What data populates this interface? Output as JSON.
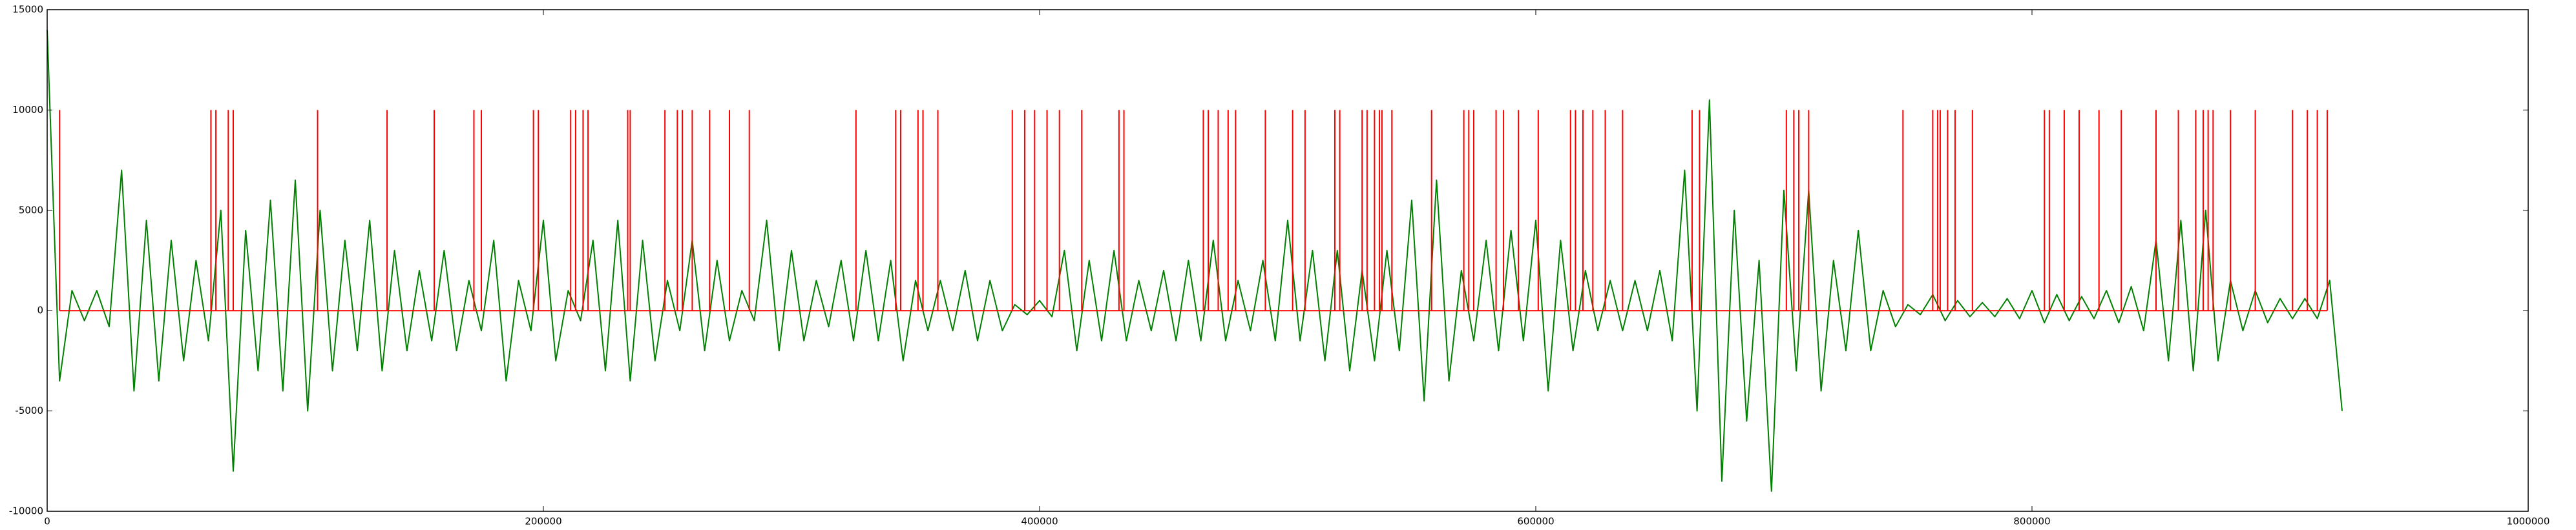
{
  "chart_data": {
    "type": "line",
    "xlim": [
      0,
      1000000
    ],
    "ylim": [
      -10000,
      15000
    ],
    "xticks": [
      0,
      200000,
      400000,
      600000,
      800000,
      1000000
    ],
    "yticks": [
      -10000,
      -5000,
      0,
      5000,
      10000,
      15000
    ],
    "series": [
      {
        "color": "#008000",
        "x": [
          0,
          5000,
          10000,
          15000,
          20000,
          25000,
          30000,
          35000,
          40000,
          45000,
          50000,
          55000,
          60000,
          65000,
          70000,
          75000,
          80000,
          85000,
          90000,
          95000,
          100000,
          105000,
          110000,
          115000,
          120000,
          125000,
          130000,
          135000,
          140000,
          145000,
          150000,
          155000,
          160000,
          165000,
          170000,
          175000,
          180000,
          185000,
          190000,
          195000,
          200000,
          205000,
          210000,
          215000,
          220000,
          225000,
          230000,
          235000,
          240000,
          245000,
          250000,
          255000,
          260000,
          265000,
          270000,
          275000,
          280000,
          285000,
          290000,
          295000,
          300000,
          305000,
          310000,
          315000,
          320000,
          325000,
          330000,
          335000,
          340000,
          345000,
          350000,
          355000,
          360000,
          365000,
          370000,
          375000,
          380000,
          385000,
          390000,
          395000,
          400000,
          405000,
          410000,
          415000,
          420000,
          425000,
          430000,
          435000,
          440000,
          445000,
          450000,
          455000,
          460000,
          465000,
          470000,
          475000,
          480000,
          485000,
          490000,
          495000,
          500000,
          505000,
          510000,
          515000,
          520000,
          525000,
          530000,
          535000,
          540000,
          545000,
          550000,
          555000,
          560000,
          565000,
          570000,
          575000,
          580000,
          585000,
          590000,
          595000,
          600000,
          605000,
          610000,
          615000,
          620000,
          625000,
          630000,
          635000,
          640000,
          645000,
          650000,
          655000,
          660000,
          665000,
          670000,
          675000,
          680000,
          685000,
          690000,
          695000,
          700000,
          705000,
          710000,
          715000,
          720000,
          725000,
          730000,
          735000,
          740000,
          745000,
          750000,
          755000,
          760000,
          765000,
          770000,
          775000,
          780000,
          785000,
          790000,
          795000,
          800000,
          805000,
          810000,
          815000,
          820000,
          825000,
          830000,
          835000,
          840000,
          845000,
          850000,
          855000,
          860000,
          865000,
          870000,
          875000,
          880000,
          885000,
          890000,
          895000,
          900000,
          905000,
          910000,
          915000,
          920000,
          925000
        ],
        "values": [
          14000,
          -3500,
          1000,
          -500,
          1000,
          -800,
          7000,
          -4000,
          4500,
          -3500,
          3500,
          -2500,
          2500,
          -1500,
          5000,
          -8000,
          4000,
          -3000,
          5500,
          -4000,
          6500,
          -5000,
          5000,
          -3000,
          3500,
          -2000,
          4500,
          -3000,
          3000,
          -2000,
          2000,
          -1500,
          3000,
          -2000,
          1500,
          -1000,
          3500,
          -3500,
          1500,
          -1000,
          4500,
          -2500,
          1000,
          -500,
          3500,
          -3000,
          4500,
          -3500,
          3500,
          -2500,
          1500,
          -1000,
          3500,
          -2000,
          2500,
          -1500,
          1000,
          -500,
          4500,
          -2000,
          3000,
          -1500,
          1500,
          -800,
          2500,
          -1500,
          3000,
          -1500,
          2500,
          -2500,
          1500,
          -1000,
          1500,
          -1000,
          2000,
          -1500,
          1500,
          -1000,
          300,
          -200,
          500,
          -300,
          3000,
          -2000,
          2500,
          -1500,
          3000,
          -1500,
          1500,
          -1000,
          2000,
          -1500,
          2500,
          -1500,
          3500,
          -1500,
          1500,
          -1000,
          2500,
          -1500,
          4500,
          -1500,
          3000,
          -2500,
          3000,
          -3000,
          2000,
          -2500,
          3000,
          -2000,
          5500,
          -4500,
          6500,
          -3500,
          2000,
          -1500,
          3500,
          -2000,
          4000,
          -1500,
          4500,
          -4000,
          3500,
          -2000,
          2000,
          -1000,
          1500,
          -1000,
          1500,
          -1000,
          2000,
          -1500,
          7000,
          -5000,
          10500,
          -8500,
          5000,
          -5500,
          2500,
          -9000,
          6000,
          -3000,
          6000,
          -4000,
          2500,
          -2000,
          4000,
          -2000,
          1000,
          -800,
          300,
          -200,
          800,
          -500,
          500,
          -300,
          400,
          -300,
          600,
          -400,
          1000,
          -600,
          800,
          -500,
          700,
          -400,
          1000,
          -600,
          1200,
          -1000,
          3500,
          -2500,
          4500,
          -3000,
          5000,
          -2500,
          1500,
          -1000,
          1000,
          -600,
          600,
          -400,
          600,
          -400,
          1500,
          -5000
        ]
      },
      {
        "color": "#ff0000",
        "drawstyle": "stem",
        "x": [
          5000,
          66000,
          68000,
          73000,
          75000,
          109000,
          137000,
          156000,
          172000,
          175000,
          196000,
          198000,
          211000,
          213000,
          216000,
          218000,
          234000,
          235000,
          249000,
          254000,
          256000,
          260000,
          267000,
          275000,
          283000,
          326000,
          342000,
          344000,
          351000,
          353000,
          359000,
          389000,
          394000,
          398000,
          403000,
          408000,
          417000,
          432000,
          434000,
          466000,
          468000,
          472000,
          476000,
          479000,
          491000,
          502000,
          507000,
          519000,
          521000,
          530000,
          532000,
          535000,
          537000,
          538000,
          542000,
          558000,
          571000,
          573000,
          575000,
          584000,
          587000,
          593000,
          601000,
          614000,
          616000,
          619000,
          623000,
          628000,
          635000,
          663000,
          666000,
          701000,
          704000,
          706000,
          710000,
          748000,
          760000,
          762000,
          763000,
          766000,
          769000,
          776000,
          805000,
          807000,
          813000,
          819000,
          827000,
          836000,
          850000,
          859000,
          866000,
          869000,
          871000,
          873000,
          880000,
          890000,
          905000,
          911000,
          915000,
          919000
        ],
        "values": [
          10000,
          10000,
          10000,
          10000,
          10000,
          10000,
          10000,
          10000,
          10000,
          10000,
          10000,
          10000,
          10000,
          10000,
          10000,
          10000,
          10000,
          10000,
          10000,
          10000,
          10000,
          10000,
          10000,
          10000,
          10000,
          10000,
          10000,
          10000,
          10000,
          10000,
          10000,
          10000,
          10000,
          10000,
          10000,
          10000,
          10000,
          10000,
          10000,
          10000,
          10000,
          10000,
          10000,
          10000,
          10000,
          10000,
          10000,
          10000,
          10000,
          10000,
          10000,
          10000,
          10000,
          10000,
          10000,
          10000,
          10000,
          10000,
          10000,
          10000,
          10000,
          10000,
          10000,
          10000,
          10000,
          10000,
          10000,
          10000,
          10000,
          10000,
          10000,
          10000,
          10000,
          10000,
          10000,
          10000,
          10000,
          10000,
          10000,
          10000,
          10000,
          10000,
          10000,
          10000,
          10000,
          10000,
          10000,
          10000,
          10000,
          10000,
          10000,
          10000,
          10000,
          10000,
          10000,
          10000,
          10000,
          10000,
          10000,
          10000
        ]
      }
    ]
  }
}
